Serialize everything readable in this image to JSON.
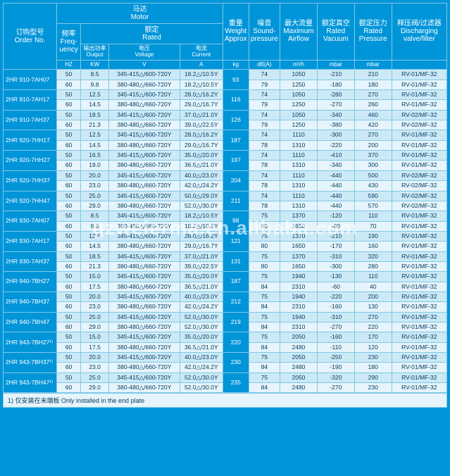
{
  "watermark": "gzweierma.en.alibaba.com",
  "footnote": "1) 仅安装在末端板   Only installed in the end plate",
  "headers": {
    "order_no": {
      "cn": "订购型号",
      "en": "Order No."
    },
    "motor": {
      "cn": "马达",
      "en": "Motor"
    },
    "rated": {
      "cn": "额定",
      "en": "Rated"
    },
    "freq": {
      "cn": "频率",
      "en": "Freq-\nuency"
    },
    "output": {
      "cn": "输出功率",
      "en": "Output"
    },
    "voltage": {
      "cn": "电压",
      "en": "Voltage"
    },
    "current": {
      "cn": "电流",
      "en": "Current"
    },
    "weight": {
      "cn": "重量",
      "en": "Weight\nApprox"
    },
    "sound": {
      "cn": "噪音",
      "en": "Sound-\npressure"
    },
    "airflow": {
      "cn": "最大流量",
      "en": "Maximum\nAirflow"
    },
    "vacuum": {
      "cn": "额定真空",
      "en": "Rated\nVacuum"
    },
    "pressure": {
      "cn": "额定压力",
      "en": "Rated\nPressure"
    },
    "discharge": {
      "cn": "释压阀/过滤器",
      "en": "Discharging\nvalve/filter"
    }
  },
  "units": {
    "freq": "HZ",
    "output": "KW",
    "voltage": "V",
    "current": "A",
    "weight": "kg",
    "sound": "dB(A)",
    "airflow": "m³/h",
    "vacuum": "mbar",
    "pressure": "mbar",
    "discharge": ""
  },
  "rows": [
    {
      "model": "2HR 910-7AH07",
      "freq": "50",
      "out": "8.5",
      "v": "345-415△/600-720Y",
      "a": "18.2△/10.5Y",
      "wt": "93",
      "db": "74",
      "af": "1050",
      "vac": "-210",
      "pr": "210",
      "dv": "RV-01/MF-32"
    },
    {
      "model": "",
      "freq": "60",
      "out": "9.8",
      "v": "380-480△/660-720Y",
      "a": "18.2△/10.5Y",
      "wt": "",
      "db": "79",
      "af": "1250",
      "vac": "-180",
      "pr": "180",
      "dv": "RV-01/MF-32"
    },
    {
      "model": "2HR 910-7AH17",
      "freq": "50",
      "out": "12.5",
      "v": "345-415△/600-720Y",
      "a": "28.0△/16.2Y",
      "wt": "116",
      "db": "74",
      "af": "1050",
      "vac": "-280",
      "pr": "270",
      "dv": "RV-01/MF-32"
    },
    {
      "model": "",
      "freq": "60",
      "out": "14.5",
      "v": "380-480△/660-720Y",
      "a": "29.0△/16.7Y",
      "wt": "",
      "db": "79",
      "af": "1250",
      "vac": "-270",
      "pr": "260",
      "dv": "RV-01/MF-32"
    },
    {
      "model": "2HR 910-7AH37",
      "freq": "50",
      "out": "18.5",
      "v": "345-415△/600-720Y",
      "a": "37.0△/21.0Y",
      "wt": "126",
      "db": "74",
      "af": "1050",
      "vac": "-340",
      "pr": "460",
      "dv": "RV-02/MF-32"
    },
    {
      "model": "",
      "freq": "60",
      "out": "21.3",
      "v": "380-480△/660-720Y",
      "a": "39.0△/22.5Y",
      "wt": "",
      "db": "79",
      "af": "1250",
      "vac": "-380",
      "pr": "420",
      "dv": "RV-02/MF-32"
    },
    {
      "model": "2HR 920-7HH17",
      "freq": "50",
      "out": "12.5",
      "v": "345-415△/600-720Y",
      "a": "28.0△/16.2Y",
      "wt": "187",
      "db": "74",
      "af": "1110",
      "vac": "-300",
      "pr": "270",
      "dv": "RV-01/MF-32"
    },
    {
      "model": "",
      "freq": "60",
      "out": "14.5",
      "v": "380-480△/660-720Y",
      "a": "29.0△/16.7Y",
      "wt": "",
      "db": "78",
      "af": "1310",
      "vac": "-220",
      "pr": "200",
      "dv": "RV-01/MF-32"
    },
    {
      "model": "2HR 920-7HH27",
      "freq": "50",
      "out": "16.5",
      "v": "345-415△/600-720Y",
      "a": "35.0△/20.0Y",
      "wt": "197",
      "db": "74",
      "af": "1110",
      "vac": "-410",
      "pr": "370",
      "dv": "RV-01/MF-32"
    },
    {
      "model": "",
      "freq": "60",
      "out": "19.0",
      "v": "380-480△/660-720Y",
      "a": "36.5△/21.0Y",
      "wt": "",
      "db": "78",
      "af": "1310",
      "vac": "-340",
      "pr": "300",
      "dv": "RV-01/MF-32"
    },
    {
      "model": "2HR 920-7HH37",
      "freq": "50",
      "out": "20.0",
      "v": "345-415△/600-720Y",
      "a": "40.0△/23.0Y",
      "wt": "204",
      "db": "74",
      "af": "1110",
      "vac": "-440",
      "pr": "500",
      "dv": "RV-02/MF-32"
    },
    {
      "model": "",
      "freq": "60",
      "out": "23.0",
      "v": "380-480△/660-720Y",
      "a": "42.0△/24.2Y",
      "wt": "",
      "db": "78",
      "af": "1310",
      "vac": "-440",
      "pr": "430",
      "dv": "RV-02/MF-32"
    },
    {
      "model": "2HR 920-7HH47",
      "freq": "50",
      "out": "25.0",
      "v": "345-415△/600-720Y",
      "a": "50.0△/29.0Y",
      "wt": "211",
      "db": "74",
      "af": "1110",
      "vac": "-440",
      "pr": "590",
      "dv": "RV-02/MF-32"
    },
    {
      "model": "",
      "freq": "60",
      "out": "29.0",
      "v": "380-480△/660-720Y",
      "a": "52.0△/30.0Y",
      "wt": "",
      "db": "78",
      "af": "1310",
      "vac": "-440",
      "pr": "570",
      "dv": "RV-02/MF-32"
    },
    {
      "model": "2HR 930-7AH07",
      "freq": "50",
      "out": "8.5",
      "v": "345-415△/600-720Y",
      "a": "18.2△/10.5Y",
      "wt": "98",
      "db": "75",
      "af": "1370",
      "vac": "-120",
      "pr": "110",
      "dv": "RV-01/MF-32"
    },
    {
      "model": "",
      "freq": "60",
      "out": "9.8",
      "v": "380-480△/660-720Y",
      "a": "18.2△/10.5Y",
      "wt": "",
      "db": "80",
      "af": "1650",
      "vac": "-80",
      "pr": "70",
      "dv": "RV-01/MF-32"
    },
    {
      "model": "2HR 930-7AH17",
      "freq": "50",
      "out": "12.5",
      "v": "345-415△/600-720Y",
      "a": "28.0△/16.2Y",
      "wt": "121",
      "db": "75",
      "af": "1370",
      "vac": "-210",
      "pr": "190",
      "dv": "RV-01/MF-32"
    },
    {
      "model": "",
      "freq": "60",
      "out": "14.5",
      "v": "380-480△/660-720Y",
      "a": "29.0△/16.7Y",
      "wt": "",
      "db": "80",
      "af": "1650",
      "vac": "-170",
      "pr": "160",
      "dv": "RV-01/MF-32"
    },
    {
      "model": "2HR 930-7AH37",
      "freq": "50",
      "out": "18.5",
      "v": "345-415△/600-720Y",
      "a": "37.0△/21.0Y",
      "wt": "131",
      "db": "75",
      "af": "1370",
      "vac": "-310",
      "pr": "320",
      "dv": "RV-01/MF-32"
    },
    {
      "model": "",
      "freq": "60",
      "out": "21.3",
      "v": "380-480△/660-720Y",
      "a": "39.0△/22.5Y",
      "wt": "",
      "db": "80",
      "af": "1650",
      "vac": "-300",
      "pr": "280",
      "dv": "RV-01/MF-32"
    },
    {
      "model": "2HR 940-7BH27",
      "freq": "50",
      "out": "15.0",
      "v": "345-415△/600-720Y",
      "a": "35.0△/20.0Y",
      "wt": "187",
      "db": "75",
      "af": "1940",
      "vac": "-130",
      "pr": "110",
      "dv": "RV-01/MF-32"
    },
    {
      "model": "",
      "freq": "60",
      "out": "17.5",
      "v": "380-480△/660-720Y",
      "a": "36.5△/21.0Y",
      "wt": "",
      "db": "84",
      "af": "2310",
      "vac": "-60",
      "pr": "40",
      "dv": "RV-01/MF-32"
    },
    {
      "model": "2HR 940-7BH37",
      "freq": "50",
      "out": "20.0",
      "v": "345-415△/600-720Y",
      "a": "40.0△/23.0Y",
      "wt": "212",
      "db": "75",
      "af": "1940",
      "vac": "-220",
      "pr": "200",
      "dv": "RV-01/MF-32"
    },
    {
      "model": "",
      "freq": "60",
      "out": "23.0",
      "v": "380-480△/660-720Y",
      "a": "42.0△/24.2Y",
      "wt": "",
      "db": "84",
      "af": "2310",
      "vac": "-160",
      "pr": "130",
      "dv": "RV-01/MF-32"
    },
    {
      "model": "2HR 940-7BH47",
      "freq": "50",
      "out": "25.0",
      "v": "345-415△/600-720Y",
      "a": "52.0△/30.0Y",
      "wt": "219",
      "db": "75",
      "af": "1940",
      "vac": "-310",
      "pr": "270",
      "dv": "RV-01/MF-32"
    },
    {
      "model": "",
      "freq": "60",
      "out": "29.0",
      "v": "380-480△/660-720Y",
      "a": "52.0△/30.0Y",
      "wt": "",
      "db": "84",
      "af": "2310",
      "vac": "-270",
      "pr": "220",
      "dv": "RV-01/MF-32"
    },
    {
      "model": "2HR 943-7BH27¹⁾",
      "freq": "50",
      "out": "15.0",
      "v": "345-415△/600-720Y",
      "a": "35.0△/20.0Y",
      "wt": "220",
      "db": "75",
      "af": "2050",
      "vac": "-160",
      "pr": "170",
      "dv": "RV-01/MF-32"
    },
    {
      "model": "",
      "freq": "60",
      "out": "17.5",
      "v": "380-480△/660-720Y",
      "a": "36.5△/21.0Y",
      "wt": "",
      "db": "84",
      "af": "2480",
      "vac": "-110",
      "pr": "120",
      "dv": "RV-01/MF-32"
    },
    {
      "model": "2HR 943-7BH37¹⁾",
      "freq": "50",
      "out": "20.0",
      "v": "345-415△/600-720Y",
      "a": "40.0△/23.0Y",
      "wt": "230",
      "db": "75",
      "af": "2050",
      "vac": "-250",
      "pr": "230",
      "dv": "RV-01/MF-32"
    },
    {
      "model": "",
      "freq": "60",
      "out": "23.0",
      "v": "380-480△/660-720Y",
      "a": "42.0△/24.2Y",
      "wt": "",
      "db": "84",
      "af": "2480",
      "vac": "-190",
      "pr": "180",
      "dv": "RV-01/MF-32"
    },
    {
      "model": "2HR 943-7BH47¹⁾",
      "freq": "50",
      "out": "25.0",
      "v": "345-415△/600-720Y",
      "a": "52.0△/30.0Y",
      "wt": "235",
      "db": "75",
      "af": "2050",
      "vac": "-320",
      "pr": "290",
      "dv": "RV-01/MF-32"
    },
    {
      "model": "",
      "freq": "60",
      "out": "29.0",
      "v": "380-480△/660-720Y",
      "a": "52.0△/30.0Y",
      "wt": "",
      "db": "84",
      "af": "2480",
      "vac": "-270",
      "pr": "230",
      "dv": "RV-01/MF-32"
    }
  ]
}
